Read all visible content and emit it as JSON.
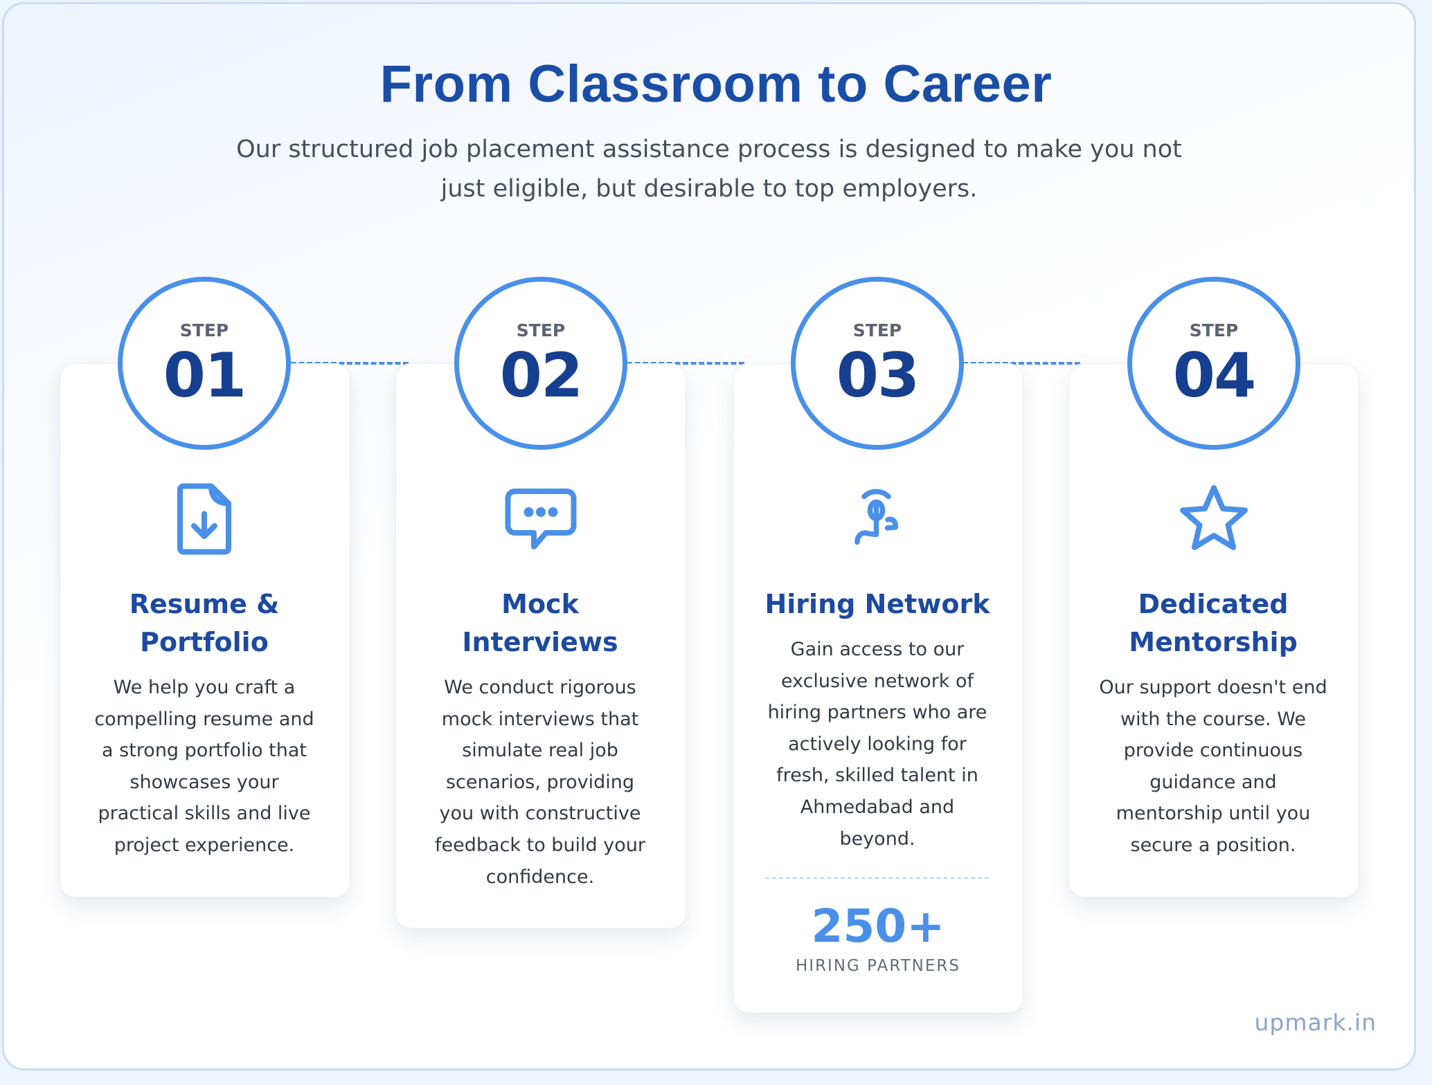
{
  "header": {
    "title": "From Classroom to Career",
    "subtitle": "Our structured job placement assistance process is designed to make you not just eligible, but desirable to top employers."
  },
  "steps": [
    {
      "step_label": "STEP",
      "number": "01",
      "icon": "file-download-icon",
      "title": "Resume & Portfolio",
      "body": "We help you craft a compelling resume and a strong portfolio that showcases your practical skills and live project experience."
    },
    {
      "step_label": "STEP",
      "number": "02",
      "icon": "chat-bubble-icon",
      "title": "Mock Interviews",
      "body": "We conduct rigorous mock interviews that simulate real job scenarios, providing you with constructive feedback to build your confidence."
    },
    {
      "step_label": "STEP",
      "number": "03",
      "icon": "hand-pointer-icon",
      "title": "Hiring Network",
      "body": "Gain access to our exclusive network of hiring partners who are actively looking for fresh, skilled talent in Ahmedabad and beyond.",
      "stat_value": "250+",
      "stat_label": "HIRING PARTNERS"
    },
    {
      "step_label": "STEP",
      "number": "04",
      "icon": "star-icon",
      "title": "Dedicated Mentorship",
      "body": "Our support doesn't end with the course. We provide continuous guidance and mentorship until you secure a position."
    }
  ],
  "brand": "upmark.in",
  "colors": {
    "primary": "#1a4da6",
    "accent": "#4a90e8",
    "text": "#343a44"
  }
}
